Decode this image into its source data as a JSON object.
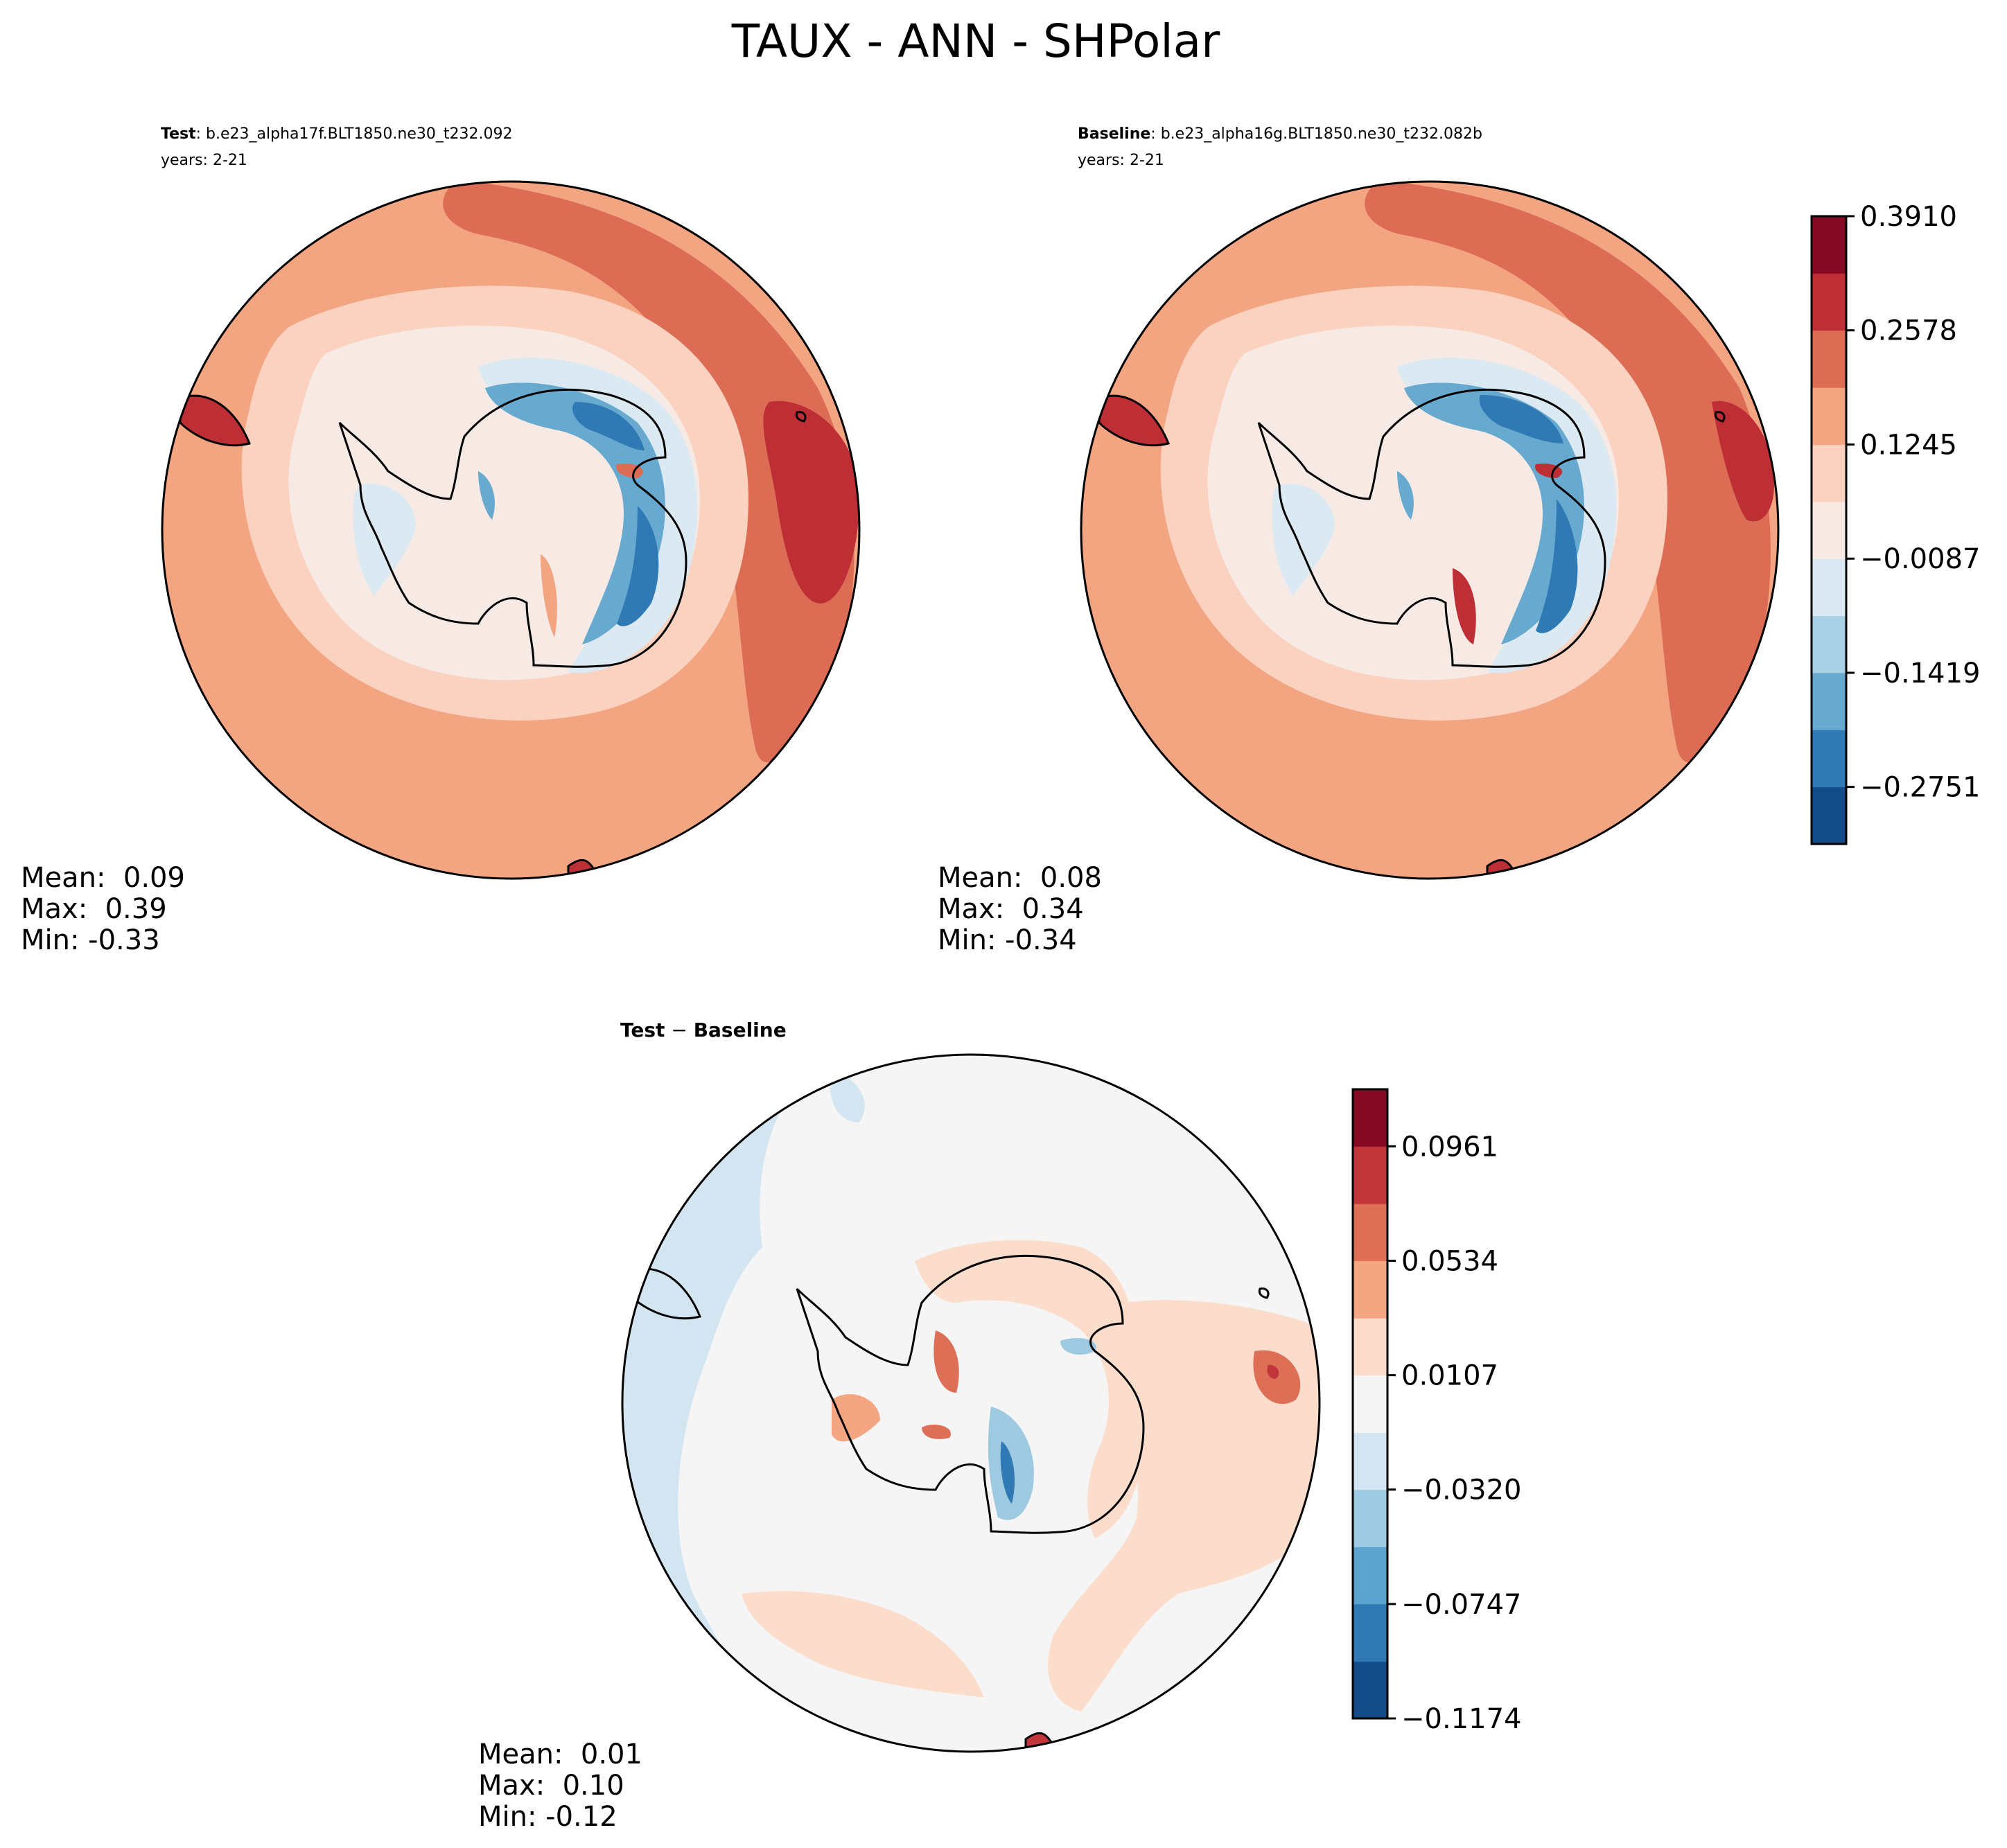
{
  "figure_title": "TAUX - ANN - SHPolar",
  "panels": [
    {
      "id": "test",
      "label_bold": "Test",
      "label_rest": ": b.e23_alpha17f.BLT1850.ne30_t232.092",
      "years": "years: 2-21",
      "stats": [
        "Mean:  0.09",
        "Max:  0.39",
        "Min: -0.33"
      ]
    },
    {
      "id": "baseline",
      "label_bold": "Baseline",
      "label_rest": ": b.e23_alpha16g.BLT1850.ne30_t232.082b",
      "years": "years: 2-21",
      "stats": [
        "Mean:  0.08",
        "Max:  0.34",
        "Min: -0.34"
      ]
    },
    {
      "id": "diff",
      "label_bold": "Test",
      "label_mid": " − ",
      "label_bold2": "Baseline",
      "stats": [
        "Mean:  0.01",
        "Max:  0.10",
        "Min: -0.12"
      ]
    }
  ],
  "chart_data": [
    {
      "type": "heatmap",
      "projection": "south-polar-stereographic",
      "panel": "Test",
      "levels": [
        -0.3417,
        -0.2751,
        -0.2085,
        -0.1419,
        -0.0753,
        -0.0087,
        0.0579,
        0.1245,
        0.1911,
        0.2578,
        0.3244,
        0.391
      ],
      "colorbar_ticks": [
        "0.3910",
        "0.2578",
        "0.1245",
        "−0.0087",
        "−0.1419",
        "−0.2751"
      ],
      "colors": [
        "#144c88",
        "#2f79b5",
        "#67a9cf",
        "#a9d0e5",
        "#dbe9f2",
        "#f7eae4",
        "#fad2bf",
        "#f3a582",
        "#dd6c55",
        "#be2f35",
        "#860a24"
      ],
      "mean": 0.09,
      "max": 0.39,
      "min": -0.33
    },
    {
      "type": "heatmap",
      "projection": "south-polar-stereographic",
      "panel": "Baseline",
      "levels": [
        -0.3417,
        -0.2751,
        -0.2085,
        -0.1419,
        -0.0753,
        -0.0087,
        0.0579,
        0.1245,
        0.1911,
        0.2578,
        0.3244,
        0.391
      ],
      "colorbar_ticks": [
        "0.3910",
        "0.2578",
        "0.1245",
        "−0.0087",
        "−0.1419",
        "−0.2751"
      ],
      "colors": [
        "#144c88",
        "#2f79b5",
        "#67a9cf",
        "#a9d0e5",
        "#dbe9f2",
        "#f7eae4",
        "#fad2bf",
        "#f3a582",
        "#dd6c55",
        "#be2f35",
        "#860a24"
      ],
      "mean": 0.08,
      "max": 0.34,
      "min": -0.34
    },
    {
      "type": "heatmap",
      "projection": "south-polar-stereographic",
      "panel": "Test − Baseline",
      "levels": [
        -0.1174,
        -0.0961,
        -0.0747,
        -0.0534,
        -0.032,
        -0.0107,
        0.0107,
        0.032,
        0.0534,
        0.0747,
        0.0961,
        0.1174
      ],
      "colorbar_ticks": [
        "0.0961",
        "0.0534",
        "0.0107",
        "−0.0320",
        "−0.0747",
        "−0.1174"
      ],
      "colors": [
        "#144c88",
        "#2f79b5",
        "#5ba4d0",
        "#9ecae1",
        "#d3e5f1",
        "#f5f5f5",
        "#fcdccb",
        "#f4a582",
        "#de6f57",
        "#c2353a",
        "#860a24"
      ],
      "mean": 0.01,
      "max": 0.1,
      "min": -0.12
    }
  ]
}
